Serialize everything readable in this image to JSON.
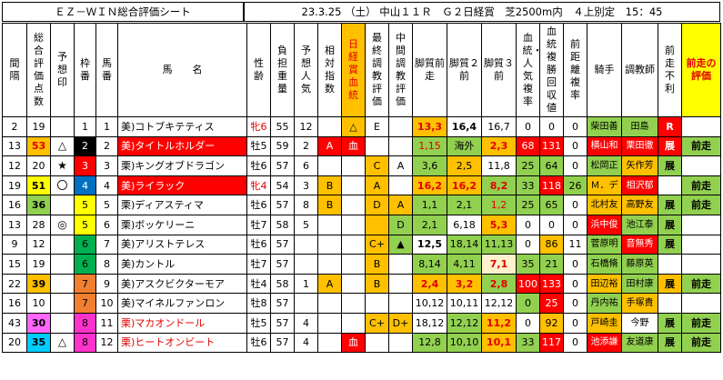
{
  "title": {
    "sheet_name": "ＥＺ－ＷＩＮ総合評価シート",
    "race": "23.3.25 （土） 中山１１Ｒ　Ｇ２日経賞　芝2500m内　４上別定　15：45"
  },
  "headers": [
    "間隔",
    "総合評価点数",
    "予想印",
    "枠番",
    "馬番",
    "馬　　名",
    "性齢",
    "負担重量",
    "予想人気",
    "相対指数",
    "日経賞血統",
    "最終調教評価",
    "中間調教評価",
    "脚質前走",
    "脚質２前",
    "脚質３前",
    "血統・人気複率",
    "血統複勝回収値",
    "前距離複率",
    "騎手",
    "調教師",
    "前走不利",
    "前走の評価"
  ],
  "rows": [
    {
      "interval": "2",
      "score": "19",
      "mark": "",
      "waku": "1",
      "num": "1",
      "name": "美)コトブキテティス",
      "sex": "牝6",
      "weight": "55",
      "pop": "12",
      "idx": "",
      "blood": "△",
      "final": "E",
      "mid": "",
      "l1": "13,3",
      "l2": "16,4",
      "l3": "16,7",
      "bp": "0",
      "br": "0",
      "dr": "0",
      "jockey": "柴田善",
      "trainer": "田島",
      "furi": "R",
      "prev": ""
    },
    {
      "interval": "13",
      "score": "53",
      "mark": "△",
      "waku": "2",
      "num": "2",
      "name": "美)タイトルホルダー",
      "sex": "牡5",
      "weight": "59",
      "pop": "2",
      "idx": "A",
      "blood": "血",
      "final": "",
      "mid": "",
      "l1": "1,15",
      "l2": "海外",
      "l3": "2,3",
      "bp": "68",
      "br": "131",
      "dr": "0",
      "jockey": "横山和",
      "trainer": "栗田徹",
      "furi": "展",
      "prev": "前走"
    },
    {
      "interval": "12",
      "score": "20",
      "mark": "★",
      "waku": "3",
      "num": "3",
      "name": "栗)キングオブドラゴン",
      "sex": "牡6",
      "weight": "57",
      "pop": "6",
      "idx": "",
      "blood": "",
      "final": "C",
      "mid": "A",
      "l1": "3,6",
      "l2": "2,5",
      "l3": "11,8",
      "bp": "25",
      "br": "64",
      "dr": "0",
      "jockey": "松岡正",
      "trainer": "矢作芳",
      "furi": "展",
      "prev": ""
    },
    {
      "interval": "19",
      "score": "51",
      "mark": "〇",
      "waku": "4",
      "num": "4",
      "name": "美)ライラック",
      "sex": "牝4",
      "weight": "54",
      "pop": "3",
      "idx": "B",
      "blood": "",
      "final": "A",
      "mid": "",
      "l1": "16,2",
      "l2": "16,2",
      "l3": "8,2",
      "bp": "33",
      "br": "118",
      "dr": "26",
      "jockey": "Ｍ．デ",
      "trainer": "相沢郁",
      "furi": "",
      "prev": "前走"
    },
    {
      "interval": "16",
      "score": "36",
      "mark": "",
      "waku": "5",
      "num": "5",
      "name": "栗)ディアスティマ",
      "sex": "牡6",
      "weight": "57",
      "pop": "8",
      "idx": "B",
      "blood": "",
      "final": "D",
      "mid": "A",
      "l1": "1,1",
      "l2": "2,1",
      "l3": "1,2",
      "bp": "25",
      "br": "65",
      "dr": "0",
      "jockey": "北村友",
      "trainer": "高野友",
      "furi": "展",
      "prev": "前走"
    },
    {
      "interval": "13",
      "score": "28",
      "mark": "◎",
      "waku": "5",
      "num": "6",
      "name": "栗)ボッケリーニ",
      "sex": "牡7",
      "weight": "58",
      "pop": "5",
      "idx": "",
      "blood": "",
      "final": "",
      "mid": "D",
      "l1": "2,1",
      "l2": "6,18",
      "l3": "5,3",
      "bp": "0",
      "br": "0",
      "dr": "0",
      "jockey": "浜中俊",
      "trainer": "池江泰",
      "furi": "展",
      "prev": ""
    },
    {
      "interval": "9",
      "score": "12",
      "mark": "",
      "waku": "6",
      "num": "7",
      "name": "美)アリストテレス",
      "sex": "牡6",
      "weight": "57",
      "pop": "",
      "idx": "",
      "blood": "",
      "final": "C+",
      "mid": "▲",
      "l1": "12,5",
      "l2": "18,14",
      "l3": "11,13",
      "bp": "0",
      "br": "86",
      "dr": "11",
      "jockey": "菅原明",
      "trainer": "音無秀",
      "furi": "展",
      "prev": ""
    },
    {
      "interval": "15",
      "score": "19",
      "mark": "",
      "waku": "6",
      "num": "8",
      "name": "美)カントル",
      "sex": "牡7",
      "weight": "57",
      "pop": "",
      "idx": "",
      "blood": "",
      "final": "B",
      "mid": "",
      "l1": "8,14",
      "l2": "4,11",
      "l3": "7,1",
      "bp": "35",
      "br": "21",
      "dr": "0",
      "jockey": "石橋脩",
      "trainer": "藤原英",
      "furi": "",
      "prev": ""
    },
    {
      "interval": "22",
      "score": "39",
      "mark": "",
      "waku": "7",
      "num": "9",
      "name": "美)アスクビクターモア",
      "sex": "牡4",
      "weight": "58",
      "pop": "1",
      "idx": "A",
      "blood": "",
      "final": "B",
      "mid": "",
      "l1": "2,4",
      "l2": "3,2",
      "l3": "2,8",
      "bp": "100",
      "br": "133",
      "dr": "0",
      "jockey": "田辺裕",
      "trainer": "田村康",
      "furi": "展",
      "prev": "前走"
    },
    {
      "interval": "16",
      "score": "10",
      "mark": "",
      "waku": "7",
      "num": "10",
      "name": "美)マイネルファンロン",
      "sex": "牡8",
      "weight": "57",
      "pop": "",
      "idx": "",
      "blood": "",
      "final": "",
      "mid": "",
      "l1": "10,12",
      "l2": "10,11",
      "l3": "12,12",
      "bp": "0",
      "br": "25",
      "dr": "0",
      "jockey": "丹内祐",
      "trainer": "手塚貴",
      "furi": "",
      "prev": ""
    },
    {
      "interval": "43",
      "score": "30",
      "mark": "",
      "waku": "8",
      "num": "11",
      "name": "栗)マカオンドール",
      "sex": "牡5",
      "weight": "57",
      "pop": "4",
      "idx": "",
      "blood": "",
      "final": "C+",
      "mid": "D+",
      "l1": "18,12",
      "l2": "12,12",
      "l3": "11,2",
      "bp": "0",
      "br": "92",
      "dr": "0",
      "jockey": "戸崎圭",
      "trainer": "今野",
      "furi": "展",
      "prev": "前走"
    },
    {
      "interval": "20",
      "score": "35",
      "mark": "△",
      "waku": "8",
      "num": "12",
      "name": "栗)ヒートオンビート",
      "sex": "牡6",
      "weight": "57",
      "pop": "4",
      "idx": "",
      "blood": "血",
      "final": "",
      "mid": "",
      "l1": "12,8",
      "l2": "10,10",
      "l3": "10,1",
      "bp": "33",
      "br": "117",
      "dr": "0",
      "jockey": "池添謙",
      "trainer": "友道康",
      "furi": "展",
      "prev": "前走"
    }
  ],
  "colors": {
    "orange": "#ffc000",
    "yellow": "#ffff00",
    "red": "#ff0000",
    "green": "#92d050",
    "cream": "#fff2cc"
  }
}
